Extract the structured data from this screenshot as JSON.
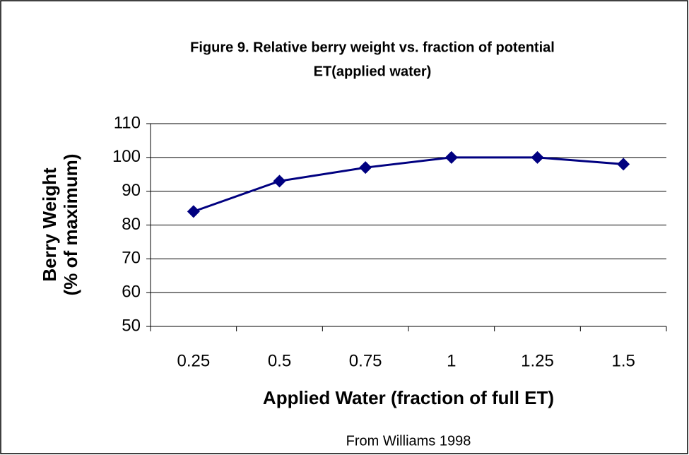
{
  "chart_data": {
    "type": "line",
    "title": [
      "Figure 9. Relative berry weight vs. fraction of potential",
      "ET(applied water)"
    ],
    "x_label": "Applied Water (fraction of full ET)",
    "y_label": [
      "Berry Weight",
      "(% of maximum)"
    ],
    "annotation": "From Williams 1998",
    "categories": [
      "0.25",
      "0.5",
      "0.75",
      "1",
      "1.25",
      "1.5"
    ],
    "series": [
      {
        "color": "#000080",
        "values": [
          84,
          93,
          97,
          100,
          100,
          98
        ]
      }
    ],
    "ylim": [
      50,
      110
    ],
    "yticks": [
      50,
      60,
      70,
      80,
      90,
      100,
      110
    ],
    "grid": true
  }
}
